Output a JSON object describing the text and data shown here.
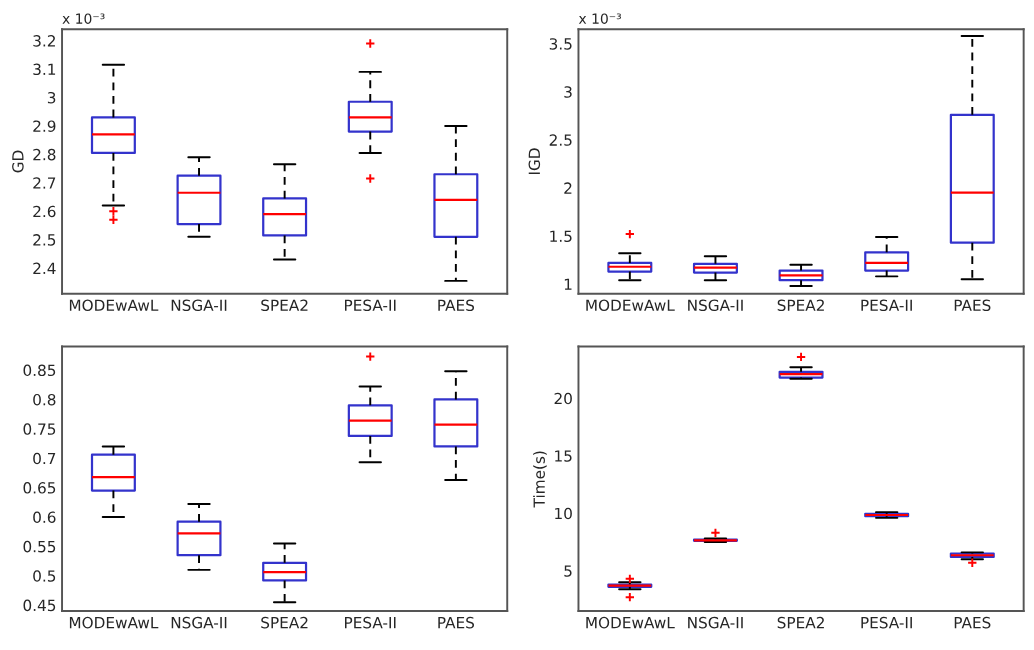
{
  "chart_data": [
    {
      "type": "box",
      "ylabel": "GD",
      "annotations": [
        "x 10⁻³"
      ],
      "categories": [
        "MODEwAwL",
        "NSGA-II",
        "SPEA2",
        "PESA-II",
        "PAES"
      ],
      "ylim": [
        2.31,
        3.24
      ],
      "yticks": [
        2.4,
        2.5,
        2.6,
        2.7,
        2.8,
        2.9,
        3,
        3.1,
        3.2
      ],
      "marker": "cross",
      "grid": false,
      "series": [
        {
          "color": "#3333cc",
          "boxes": [
            {
              "low": 2.62,
              "q1": 2.805,
              "median": 2.87,
              "q3": 2.93,
              "high": 3.115,
              "outliers": [
                2.6,
                2.57
              ]
            },
            {
              "low": 2.51,
              "q1": 2.555,
              "median": 2.665,
              "q3": 2.725,
              "high": 2.79
            },
            {
              "low": 2.43,
              "q1": 2.515,
              "median": 2.59,
              "q3": 2.645,
              "high": 2.765
            },
            {
              "low": 2.805,
              "q1": 2.88,
              "median": 2.93,
              "q3": 2.985,
              "high": 3.09,
              "outliers": [
                3.19,
                2.715
              ]
            },
            {
              "low": 2.355,
              "q1": 2.51,
              "median": 2.64,
              "q3": 2.73,
              "high": 2.9
            }
          ]
        }
      ]
    },
    {
      "type": "box",
      "ylabel": "IGD",
      "annotations": [
        "x 10⁻³"
      ],
      "categories": [
        "MODEwAwL",
        "NSGA-II",
        "SPEA2",
        "PESA-II",
        "PAES"
      ],
      "ylim": [
        0.9,
        3.65
      ],
      "yticks": [
        1,
        1.5,
        2,
        2.5,
        3,
        3.5
      ],
      "marker": "cross",
      "grid": false,
      "series": [
        {
          "color": "#3333cc",
          "boxes": [
            {
              "low": 1.04,
              "q1": 1.13,
              "median": 1.18,
              "q3": 1.22,
              "high": 1.32,
              "outliers": [
                1.52
              ]
            },
            {
              "low": 1.04,
              "q1": 1.12,
              "median": 1.17,
              "q3": 1.21,
              "high": 1.29
            },
            {
              "low": 0.98,
              "q1": 1.04,
              "median": 1.09,
              "q3": 1.14,
              "high": 1.2
            },
            {
              "low": 1.08,
              "q1": 1.14,
              "median": 1.22,
              "q3": 1.33,
              "high": 1.49
            },
            {
              "low": 1.05,
              "q1": 1.43,
              "median": 1.95,
              "q3": 2.76,
              "high": 3.58
            }
          ]
        }
      ]
    },
    {
      "type": "box",
      "categories": [
        "MODEwAwL",
        "NSGA-II",
        "SPEA2",
        "PESA-II",
        "PAES"
      ],
      "ylim": [
        0.44,
        0.89
      ],
      "yticks": [
        0.45,
        0.5,
        0.55,
        0.6,
        0.65,
        0.7,
        0.75,
        0.8,
        0.85
      ],
      "marker": "cross",
      "grid": false,
      "series": [
        {
          "color": "#3333cc",
          "boxes": [
            {
              "low": 0.6,
              "q1": 0.645,
              "median": 0.668,
              "q3": 0.706,
              "high": 0.72
            },
            {
              "low": 0.51,
              "q1": 0.535,
              "median": 0.572,
              "q3": 0.592,
              "high": 0.622
            },
            {
              "low": 0.455,
              "q1": 0.492,
              "median": 0.506,
              "q3": 0.522,
              "high": 0.555
            },
            {
              "low": 0.693,
              "q1": 0.738,
              "median": 0.764,
              "q3": 0.79,
              "high": 0.822,
              "outliers": [
                0.873
              ]
            },
            {
              "low": 0.663,
              "q1": 0.72,
              "median": 0.757,
              "q3": 0.8,
              "high": 0.848
            }
          ]
        }
      ]
    },
    {
      "type": "box",
      "ylabel": "Time(s)",
      "categories": [
        "MODEwAwL",
        "NSGA-II",
        "SPEA2",
        "PESA-II",
        "PAES"
      ],
      "ylim": [
        1.5,
        24.5
      ],
      "yticks": [
        5,
        10,
        15,
        20
      ],
      "marker": "cross",
      "grid": false,
      "series": [
        {
          "color": "#3333cc",
          "boxes": [
            {
              "low": 3.4,
              "q1": 3.6,
              "median": 3.7,
              "q3": 3.8,
              "high": 4.0,
              "outliers": [
                4.3,
                2.7
              ]
            },
            {
              "low": 7.5,
              "q1": 7.6,
              "median": 7.65,
              "q3": 7.7,
              "high": 7.8,
              "outliers": [
                8.3
              ]
            },
            {
              "low": 21.7,
              "q1": 21.8,
              "median": 22.1,
              "q3": 22.3,
              "high": 22.7,
              "outliers": [
                23.6
              ]
            },
            {
              "low": 9.6,
              "q1": 9.75,
              "median": 9.85,
              "q3": 9.95,
              "high": 10.1
            },
            {
              "low": 6.0,
              "q1": 6.2,
              "median": 6.35,
              "q3": 6.5,
              "high": 6.6,
              "outliers": [
                5.7
              ]
            }
          ]
        }
      ]
    }
  ]
}
